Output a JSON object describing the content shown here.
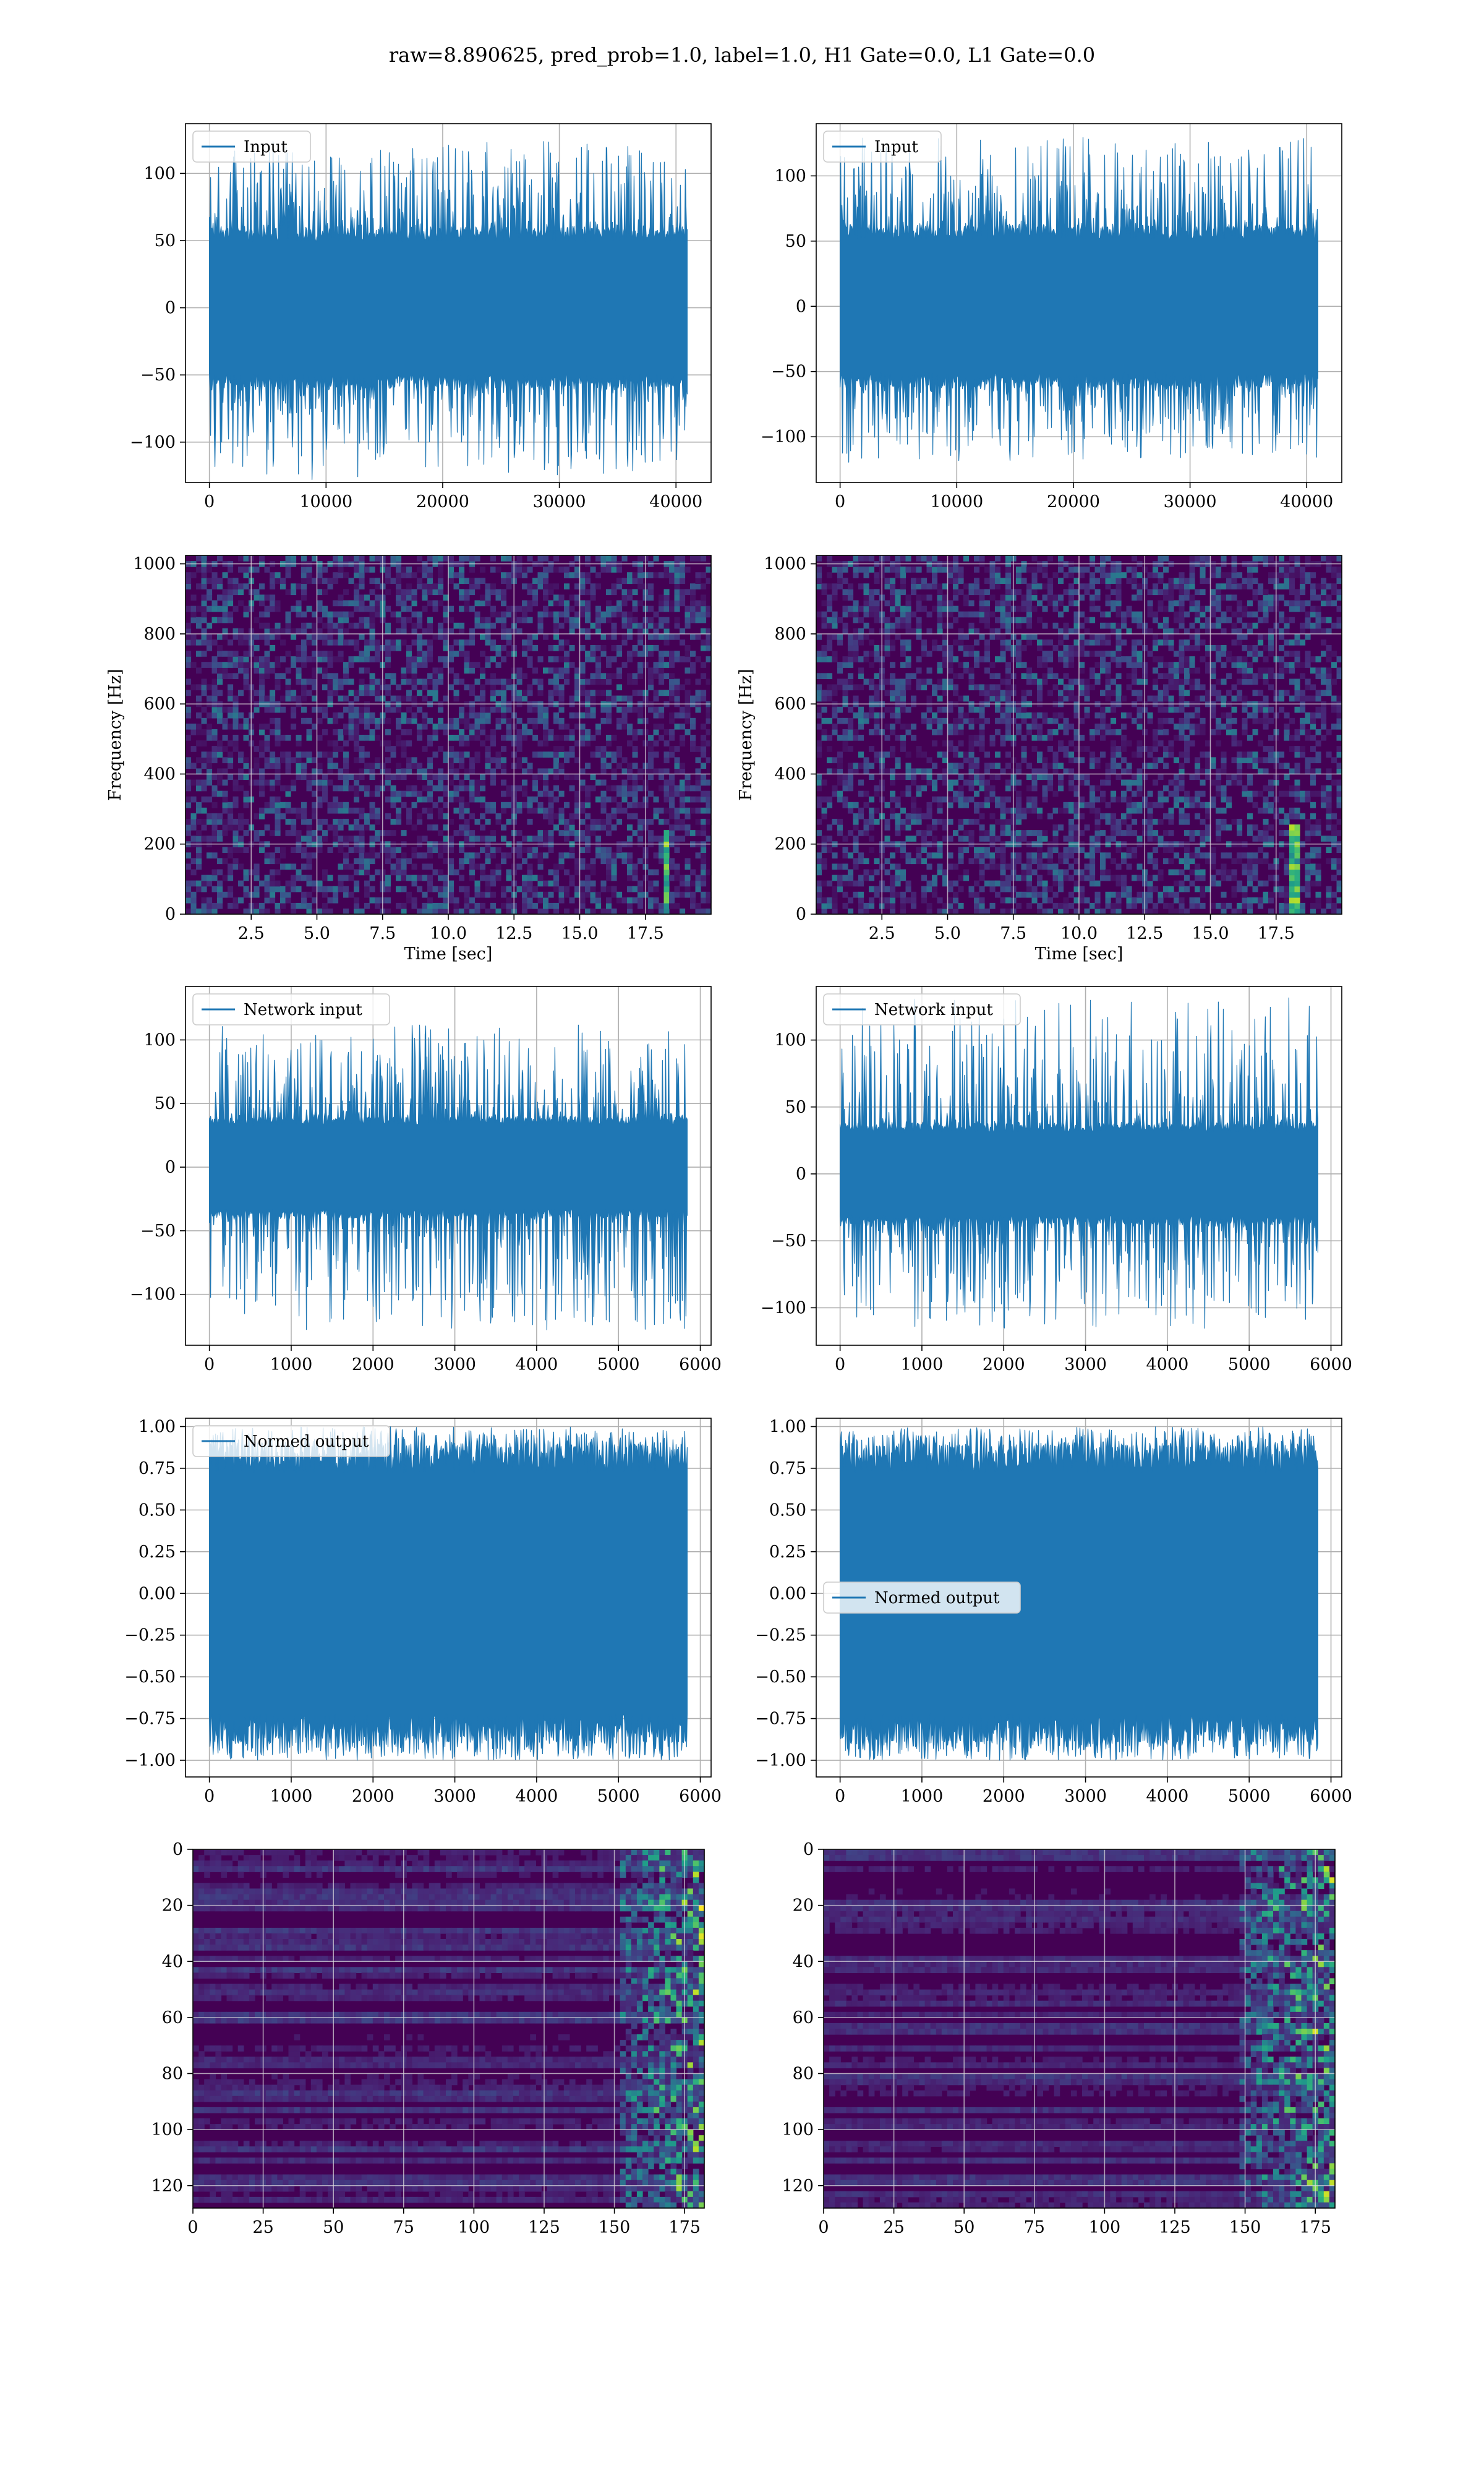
{
  "figure": {
    "title": "raw=8.890625, pred_prob=1.0, label=1.0, H1 Gate=0.0, L1 Gate=0.0"
  },
  "colors": {
    "line": "#1f77b4",
    "viridis_dark": "#440154",
    "viridis_mid": "#3b528b",
    "viridis_green": "#21918c",
    "viridis_bright": "#5ec962",
    "viridis_yellow": "#fde725",
    "grid_line": "#b0b0b0",
    "grid_image": "#e0e0e0"
  },
  "chart_data": [
    {
      "type": "line",
      "legend": "Input",
      "legend_position": "upper left",
      "xlim": [
        -2048,
        43008
      ],
      "ylim": [
        -130,
        137
      ],
      "xticks": [
        0,
        10000,
        20000,
        30000,
        40000
      ],
      "yticks": [
        -100,
        -50,
        0,
        50,
        100
      ],
      "xlabel": "",
      "ylabel": "",
      "grid": true,
      "signal": {
        "n": 40960,
        "band": 60,
        "spike_max": 125,
        "spike_min": -128,
        "seed": 11
      }
    },
    {
      "type": "line",
      "legend": "Input",
      "legend_position": "upper left",
      "xlim": [
        -2048,
        43008
      ],
      "ylim": [
        -135,
        140
      ],
      "xticks": [
        0,
        10000,
        20000,
        30000,
        40000
      ],
      "yticks": [
        -100,
        -50,
        0,
        50,
        100
      ],
      "xlabel": "",
      "ylabel": "",
      "grid": true,
      "signal": {
        "n": 40960,
        "band": 62,
        "spike_max": 130,
        "spike_min": -120,
        "seed": 23
      }
    },
    {
      "type": "heatmap",
      "xlim": [
        0,
        20
      ],
      "ylim": [
        0,
        1024
      ],
      "xticks": [
        2.5,
        5.0,
        7.5,
        10.0,
        12.5,
        15.0,
        17.5
      ],
      "yticks": [
        0,
        200,
        400,
        600,
        800,
        1000
      ],
      "xlabel": "Time [sec]",
      "ylabel": "Frequency [Hz]",
      "grid": true,
      "chirp": {
        "t": 18.3,
        "f_max": 240
      },
      "seed": 5
    },
    {
      "type": "heatmap",
      "xlim": [
        0,
        20
      ],
      "ylim": [
        0,
        1024
      ],
      "xticks": [
        2.5,
        5.0,
        7.5,
        10.0,
        12.5,
        15.0,
        17.5
      ],
      "yticks": [
        0,
        200,
        400,
        600,
        800,
        1000
      ],
      "xlabel": "Time [sec]",
      "ylabel": "Frequency [Hz]",
      "grid": true,
      "chirp": {
        "t": 18.2,
        "f_max": 260
      },
      "seed": 9
    },
    {
      "type": "line",
      "legend": "Network input",
      "legend_position": "upper left",
      "xlim": [
        -292,
        6132
      ],
      "ylim": [
        -140,
        142
      ],
      "xticks": [
        0,
        1000,
        2000,
        3000,
        4000,
        5000,
        6000
      ],
      "yticks": [
        -100,
        -50,
        0,
        50,
        100
      ],
      "xlabel": "",
      "ylabel": "",
      "grid": true,
      "signal": {
        "n": 5840,
        "band": 40,
        "spike_max": 112,
        "spike_min": -128,
        "seed": 31
      }
    },
    {
      "type": "line",
      "legend": "Network input",
      "legend_position": "upper left",
      "xlim": [
        -292,
        6132
      ],
      "ylim": [
        -128,
        140
      ],
      "xticks": [
        0,
        1000,
        2000,
        3000,
        4000,
        5000,
        6000
      ],
      "yticks": [
        -100,
        -50,
        0,
        50,
        100
      ],
      "xlabel": "",
      "ylabel": "",
      "grid": true,
      "signal": {
        "n": 5840,
        "band": 38,
        "spike_max": 132,
        "spike_min": -116,
        "seed": 47
      }
    },
    {
      "type": "line",
      "legend": "Normed output",
      "legend_position": "upper left",
      "xlim": [
        -292,
        6132
      ],
      "ylim": [
        -1.1,
        1.05
      ],
      "xticks": [
        0,
        1000,
        2000,
        3000,
        4000,
        5000,
        6000
      ],
      "yticks": [
        -1.0,
        -0.75,
        -0.5,
        -0.25,
        0.0,
        0.25,
        0.5,
        0.75,
        1.0
      ],
      "xlabel": "",
      "ylabel": "",
      "grid": true,
      "signal": {
        "n": 5840,
        "band": 0.88,
        "spike_max": 1.0,
        "spike_min": -1.0,
        "seed": 53
      }
    },
    {
      "type": "line",
      "legend": "Normed output",
      "legend_position": "center left",
      "xlim": [
        -292,
        6132
      ],
      "ylim": [
        -1.1,
        1.05
      ],
      "xticks": [
        0,
        1000,
        2000,
        3000,
        4000,
        5000,
        6000
      ],
      "yticks": [
        -1.0,
        -0.75,
        -0.5,
        -0.25,
        0.0,
        0.25,
        0.5,
        0.75,
        1.0
      ],
      "xlabel": "",
      "ylabel": "",
      "grid": true,
      "signal": {
        "n": 5840,
        "band": 0.88,
        "spike_max": 1.0,
        "spike_min": -1.0,
        "seed": 67
      }
    },
    {
      "type": "heatmap",
      "xlim": [
        0,
        182
      ],
      "ylim": [
        128,
        0
      ],
      "xticks": [
        0,
        25,
        50,
        75,
        100,
        125,
        150,
        175
      ],
      "yticks": [
        0,
        20,
        40,
        60,
        80,
        100,
        120
      ],
      "xlabel": "",
      "ylabel": "",
      "grid": true,
      "activity_from": 152,
      "seed": 71
    },
    {
      "type": "heatmap",
      "xlim": [
        0,
        182
      ],
      "ylim": [
        128,
        0
      ],
      "xticks": [
        0,
        25,
        50,
        75,
        100,
        125,
        150,
        175
      ],
      "yticks": [
        0,
        20,
        40,
        60,
        80,
        100,
        120
      ],
      "xlabel": "",
      "ylabel": "",
      "grid": true,
      "activity_from": 148,
      "seed": 83
    }
  ]
}
